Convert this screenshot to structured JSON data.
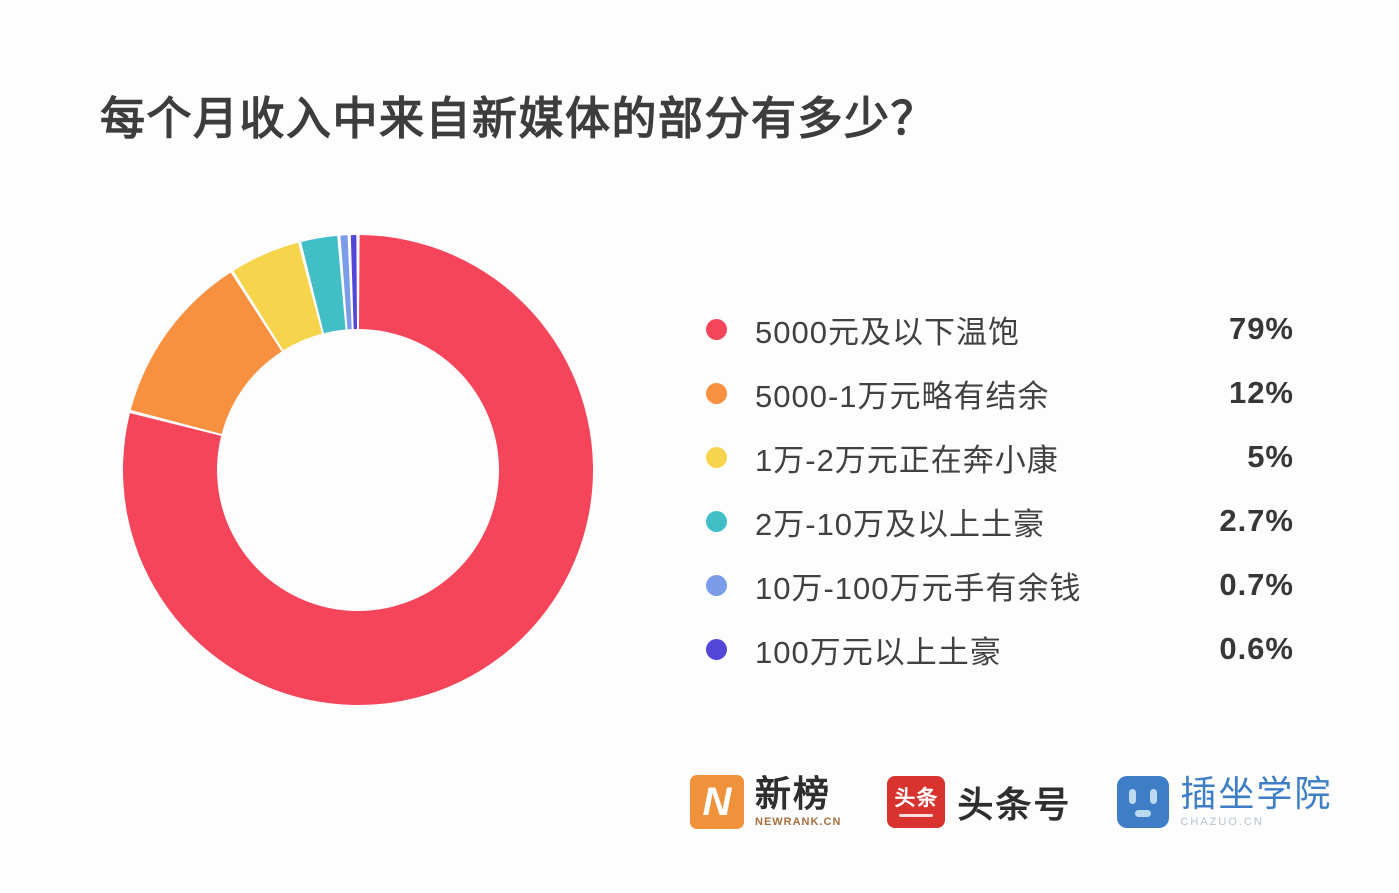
{
  "title": "每个月收入中来自新媒体的部分有多少？",
  "chart_data": {
    "type": "pie",
    "subtype": "donut",
    "title": "每个月收入中来自新媒体的部分有多少？",
    "categories": [
      "5000元及以下温饱",
      "5000-1万元略有结余",
      "1万-2万元正在奔小康",
      "2万-10万及以上土豪",
      "10万-100万元手有余钱",
      "100万元以上土豪"
    ],
    "values": [
      79,
      12,
      5,
      2.7,
      0.7,
      0.6
    ],
    "unit": "%",
    "colors": [
      "#f4455a",
      "#f7903f",
      "#f6d44b",
      "#41bec6",
      "#7b9ce8",
      "#5347d9"
    ],
    "start_angle": "top",
    "direction": "clockwise",
    "inner_radius_ratio": 0.6,
    "legend_position": "right",
    "slice_gap_white": true
  },
  "legend": {
    "items": [
      {
        "label": "5000元及以下温饱",
        "value": "79%"
      },
      {
        "label": "5000-1万元略有结余",
        "value": "12%"
      },
      {
        "label": "1万-2万元正在奔小康",
        "value": "5%"
      },
      {
        "label": "2万-10万及以上土豪",
        "value": "2.7%"
      },
      {
        "label": "10万-100万元手有余钱",
        "value": "0.7%"
      },
      {
        "label": "100万元以上土豪",
        "value": "0.6%"
      }
    ]
  },
  "footer": {
    "logos": [
      {
        "name": "newrank",
        "icon_text": "N",
        "title": "新榜",
        "subtitle": "NEWRANK.CN",
        "brand_color": "#f0913c"
      },
      {
        "name": "toutiao",
        "icon_text": "头条",
        "title": "头条号",
        "subtitle": "",
        "brand_color": "#d9332f"
      },
      {
        "name": "chazuo",
        "icon_text": "",
        "title": "插坐学院",
        "subtitle": "CHAZUO.CN",
        "brand_color": "#3d7ec6"
      }
    ]
  }
}
